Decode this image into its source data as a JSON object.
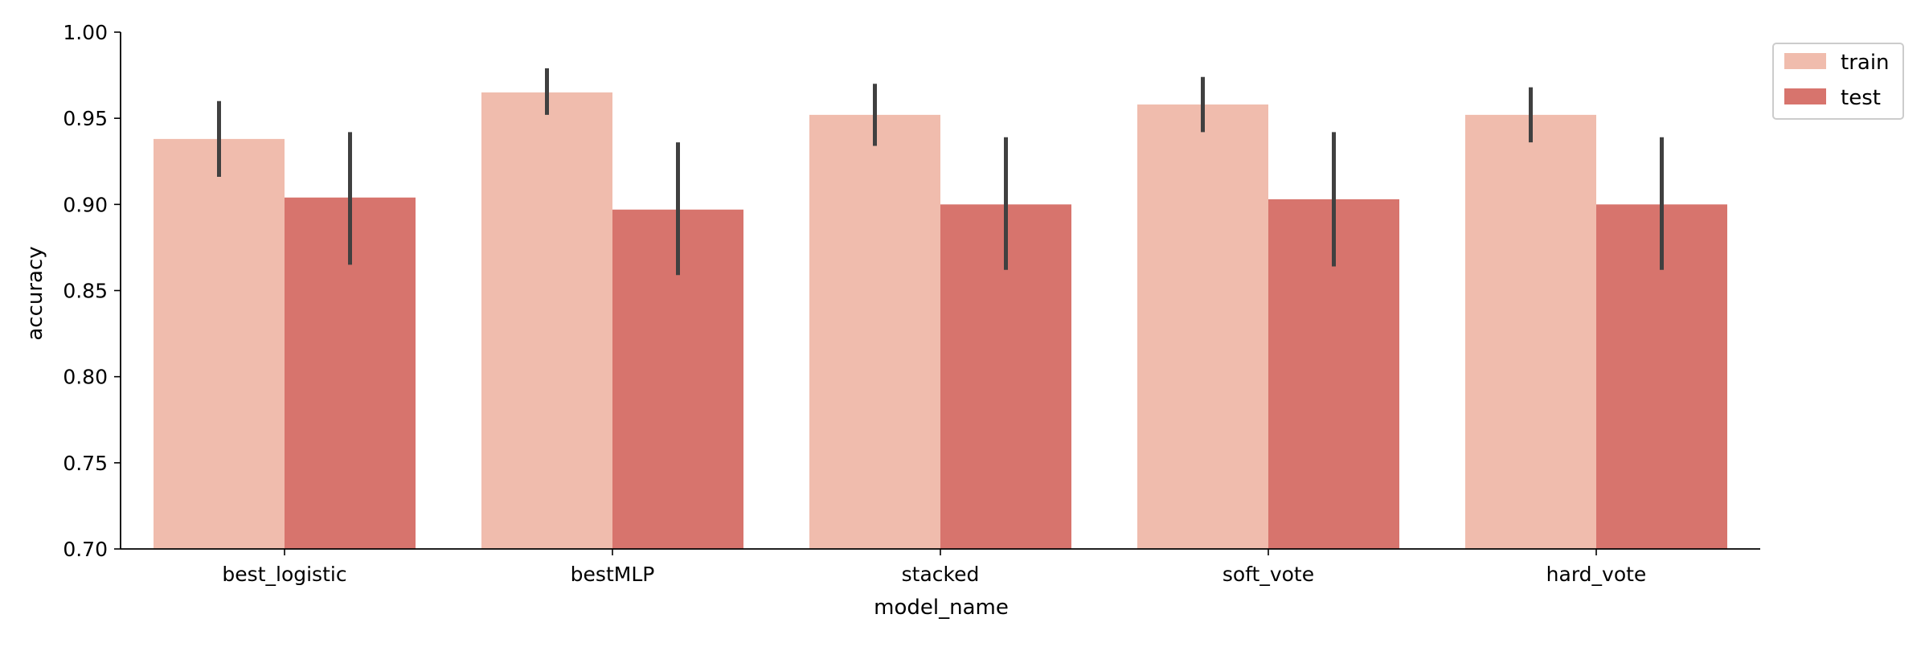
{
  "chart_data": {
    "type": "bar",
    "title": "",
    "xlabel": "model_name",
    "ylabel": "accuracy",
    "ylim": [
      0.7,
      1.0
    ],
    "yticks": [
      "0.70",
      "0.75",
      "0.80",
      "0.85",
      "0.90",
      "0.95",
      "1.00"
    ],
    "categories": [
      "best_logistic",
      "bestMLP",
      "stacked",
      "soft_vote",
      "hard_vote"
    ],
    "series": [
      {
        "name": "train",
        "color": "#f0bcad",
        "values": [
          0.938,
          0.965,
          0.952,
          0.958,
          0.952
        ],
        "ci_low": [
          0.916,
          0.952,
          0.934,
          0.942,
          0.936
        ],
        "ci_high": [
          0.96,
          0.979,
          0.97,
          0.974,
          0.968
        ]
      },
      {
        "name": "test",
        "color": "#d7746d",
        "values": [
          0.904,
          0.897,
          0.9,
          0.903,
          0.9
        ],
        "ci_low": [
          0.865,
          0.859,
          0.862,
          0.864,
          0.862
        ],
        "ci_high": [
          0.942,
          0.936,
          0.939,
          0.942,
          0.939
        ]
      }
    ],
    "errorbar_color": "#404040",
    "grid": false,
    "legend_position": "outside-top-right"
  }
}
